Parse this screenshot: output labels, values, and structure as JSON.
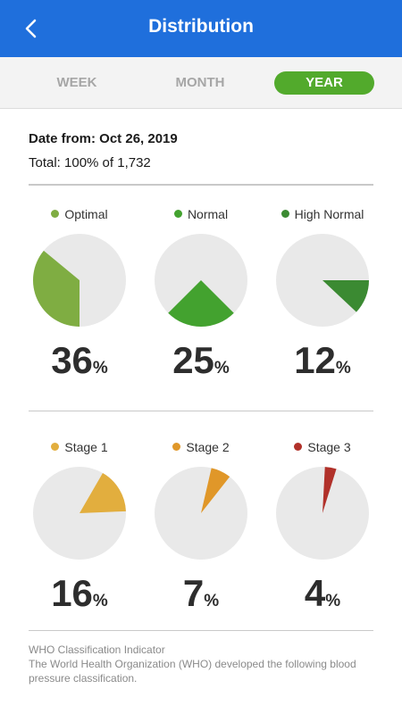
{
  "header": {
    "title": "Distribution"
  },
  "tabs": [
    {
      "label": "WEEK",
      "active": false
    },
    {
      "label": "MONTH",
      "active": false
    },
    {
      "label": "YEAR",
      "active": true
    }
  ],
  "summary": {
    "date_from": "Date from: Oct 26, 2019",
    "total": "Total: 100% of 1,732"
  },
  "categories": [
    {
      "label": "Optimal",
      "percent": 36,
      "color": "#7fad42",
      "start_deg": 180
    },
    {
      "label": "Normal",
      "percent": 25,
      "color": "#43a22f",
      "start_deg": 135
    },
    {
      "label": "High Normal",
      "percent": 12,
      "color": "#3b8a32",
      "start_deg": 90
    },
    {
      "label": "Stage 1",
      "percent": 16,
      "color": "#e2ae3e",
      "start_deg": 30
    },
    {
      "label": "Stage 2",
      "percent": 7,
      "color": "#e09729",
      "start_deg": 13
    },
    {
      "label": "Stage 3",
      "percent": 4,
      "color": "#b1312a",
      "start_deg": 3
    }
  ],
  "pct_symbol": "%",
  "pie_background": "#e9e9e9",
  "footer": {
    "title": "WHO Classification Indicator",
    "text": "The World Health Organization (WHO) developed the following blood pressure classification."
  }
}
